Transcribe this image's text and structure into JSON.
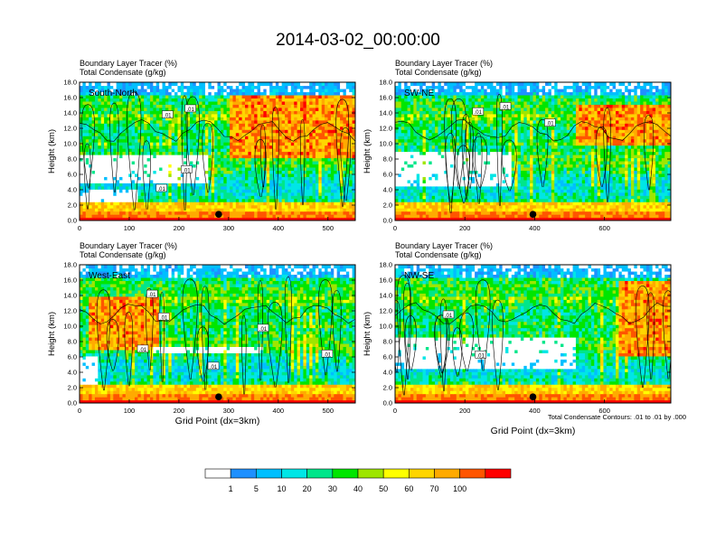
{
  "title": "2014-03-02_00:00:00",
  "colors": {
    "levels": [
      "#ffffff",
      "#1e90ff",
      "#00bfff",
      "#00e6e6",
      "#00e68a",
      "#00e600",
      "#9ee600",
      "#ffff00",
      "#ffd500",
      "#ffaa00",
      "#ff5500",
      "#ff0000"
    ],
    "contour": "#000000",
    "marker": "#000000"
  },
  "colorbar": {
    "labels": [
      "1",
      "5",
      "10",
      "20",
      "30",
      "40",
      "50",
      "60",
      "70",
      "100"
    ]
  },
  "footnote": "Total Condensate Contours: .01 to .01 by .000",
  "chart_data": [
    {
      "type": "heatmap",
      "panel": "South-North",
      "title_lines": [
        "Boundary Layer Tracer   (%)",
        "Total Condensate   (g/kg)"
      ],
      "ylabel": "Height (km)",
      "xlabel": "",
      "xlim": [
        0,
        555
      ],
      "ylim": [
        0,
        18
      ],
      "xticks": [
        0,
        100,
        200,
        300,
        400,
        500
      ],
      "yticks": [
        "0.0",
        "2.0",
        "4.0",
        "6.0",
        "8.0",
        "10.0",
        "12.0",
        "14.0",
        "16.0",
        "18.0"
      ],
      "marker_x": 280,
      "contour_labels": [
        ".01",
        ".01",
        ".01",
        ".01"
      ],
      "seed": 11,
      "clear_band": [
        [
          0,
          260,
          5,
          8.5
        ],
        [
          0,
          120,
          2.5,
          4
        ]
      ],
      "hot_region": [
        300,
        555,
        8,
        16.5
      ]
    },
    {
      "type": "heatmap",
      "panel": "SW-NE",
      "title_lines": [
        "Boundary Layer Tracer   (%)",
        "Total Condensate   (g/kg)"
      ],
      "ylabel": "Height (km)",
      "xlabel": "",
      "xlim": [
        0,
        790
      ],
      "ylim": [
        0,
        18
      ],
      "xticks": [
        0,
        200,
        400,
        600
      ],
      "yticks": [
        "0.0",
        "2.0",
        "4.0",
        "6.0",
        "8.0",
        "10.0",
        "12.0",
        "14.0",
        "16.0",
        "18.0"
      ],
      "marker_x": 395,
      "contour_labels": [
        ".01",
        ".01",
        ".01"
      ],
      "seed": 23,
      "clear_band": [
        [
          0,
          330,
          4.5,
          9
        ]
      ],
      "hot_region": [
        520,
        790,
        10,
        15
      ]
    },
    {
      "type": "heatmap",
      "panel": "West-East",
      "title_lines": [
        "Boundary Layer Tracer   (%)",
        "Total Condensate   (g/kg)"
      ],
      "ylabel": "Height (km)",
      "xlabel": "Grid Point (dx=3km)",
      "xlim": [
        0,
        555
      ],
      "ylim": [
        0,
        18
      ],
      "xticks": [
        0,
        100,
        200,
        300,
        400,
        500
      ],
      "yticks": [
        "0.0",
        "2.0",
        "4.0",
        "6.0",
        "8.0",
        "10.0",
        "12.0",
        "14.0",
        "16.0",
        "18.0"
      ],
      "marker_x": 280,
      "contour_labels": [
        ".01",
        ".01",
        ".01",
        ".01",
        ".01",
        ".01"
      ],
      "seed": 37,
      "clear_band": [
        [
          0,
          40,
          1,
          6
        ],
        [
          150,
          370,
          6.5,
          7.5
        ]
      ],
      "hot_region": [
        20,
        160,
        7,
        14
      ]
    },
    {
      "type": "heatmap",
      "panel": "NW-SE",
      "title_lines": [
        "Boundary Layer Tracer   (%)",
        "Total Condensate   (g/kg)"
      ],
      "ylabel": "Height (km)",
      "xlabel": "Grid Point (dx=3km)",
      "xlim": [
        0,
        790
      ],
      "ylim": [
        0,
        18
      ],
      "xticks": [
        0,
        200,
        400,
        600
      ],
      "yticks": [
        "0.0",
        "2.0",
        "4.0",
        "6.0",
        "8.0",
        "10.0",
        "12.0",
        "14.0",
        "16.0",
        "18.0"
      ],
      "marker_x": 395,
      "contour_labels": [
        ".01",
        ".01"
      ],
      "seed": 53,
      "clear_band": [
        [
          0,
          520,
          4.5,
          8.5
        ]
      ],
      "hot_region": [
        640,
        790,
        6,
        16
      ]
    }
  ]
}
